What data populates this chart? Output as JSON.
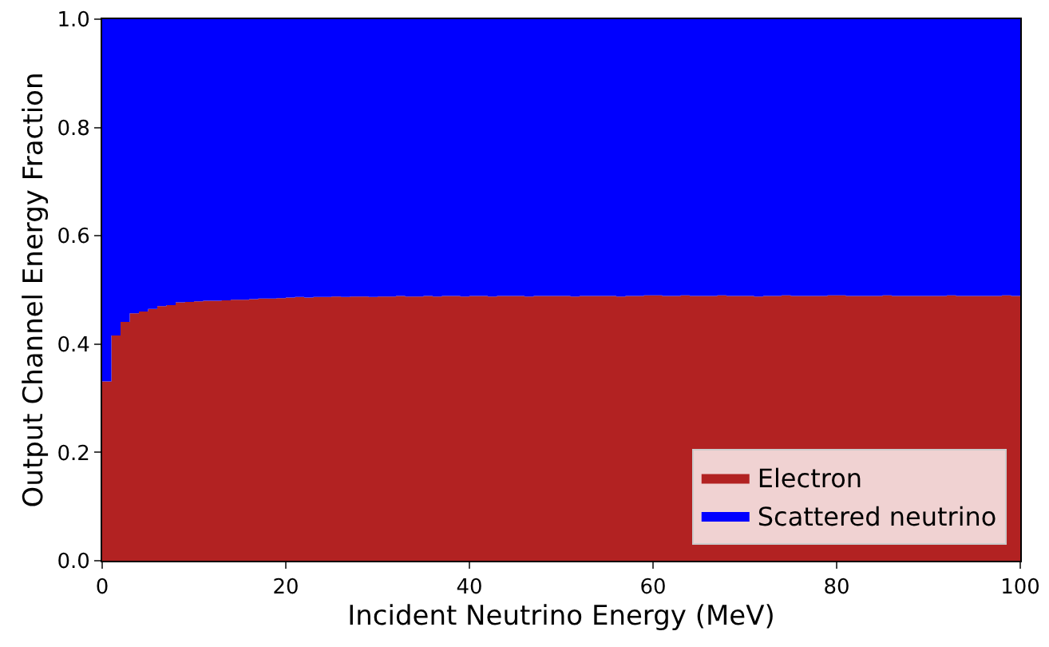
{
  "chart_data": {
    "type": "area",
    "stacked": true,
    "xlabel": "Incident Neutrino Energy (MeV)",
    "ylabel": "Output Channel Energy Fraction",
    "x": [
      0.5,
      1.5,
      2.5,
      3.5,
      4.5,
      5.5,
      6.5,
      7.5,
      8.5,
      9.5,
      10.5,
      11.5,
      12.5,
      13.5,
      14.5,
      15.5,
      16.5,
      17.5,
      18.5,
      19.5,
      20.5,
      21.5,
      22.5,
      23.5,
      24.5,
      25.5,
      26.5,
      27.5,
      28.5,
      29.5,
      30.5,
      31.5,
      32.5,
      33.5,
      34.5,
      35.5,
      36.5,
      37.5,
      38.5,
      39.5,
      40.5,
      41.5,
      42.5,
      43.5,
      44.5,
      45.5,
      46.5,
      47.5,
      48.5,
      49.5,
      50.5,
      51.5,
      52.5,
      53.5,
      54.5,
      55.5,
      56.5,
      57.5,
      58.5,
      59.5,
      60.5,
      61.5,
      62.5,
      63.5,
      64.5,
      65.5,
      66.5,
      67.5,
      68.5,
      69.5,
      70.5,
      71.5,
      72.5,
      73.5,
      74.5,
      75.5,
      76.5,
      77.5,
      78.5,
      79.5,
      80.5,
      81.5,
      82.5,
      83.5,
      84.5,
      85.5,
      86.5,
      87.5,
      88.5,
      89.5,
      90.5,
      91.5,
      92.5,
      93.5,
      94.5,
      95.5,
      96.5,
      97.5,
      98.5,
      99.5
    ],
    "series": [
      {
        "name": "Electron",
        "color": "#b22222",
        "values": [
          0.331,
          0.416,
          0.441,
          0.457,
          0.46,
          0.465,
          0.47,
          0.472,
          0.477,
          0.478,
          0.479,
          0.48,
          0.48,
          0.481,
          0.482,
          0.482,
          0.483,
          0.484,
          0.484,
          0.485,
          0.486,
          0.487,
          0.486,
          0.487,
          0.487,
          0.488,
          0.487,
          0.488,
          0.488,
          0.487,
          0.488,
          0.488,
          0.489,
          0.488,
          0.488,
          0.489,
          0.488,
          0.489,
          0.489,
          0.488,
          0.489,
          0.489,
          0.488,
          0.489,
          0.489,
          0.489,
          0.488,
          0.489,
          0.489,
          0.489,
          0.489,
          0.488,
          0.489,
          0.489,
          0.489,
          0.489,
          0.488,
          0.489,
          0.489,
          0.49,
          0.49,
          0.489,
          0.489,
          0.49,
          0.489,
          0.489,
          0.489,
          0.49,
          0.489,
          0.489,
          0.489,
          0.488,
          0.489,
          0.489,
          0.49,
          0.489,
          0.489,
          0.489,
          0.489,
          0.49,
          0.49,
          0.489,
          0.489,
          0.489,
          0.489,
          0.49,
          0.489,
          0.489,
          0.489,
          0.489,
          0.489,
          0.489,
          0.49,
          0.489,
          0.489,
          0.489,
          0.489,
          0.489,
          0.49,
          0.489
        ]
      },
      {
        "name": "Scattered neutrino",
        "color": "#0000ff",
        "values": [
          0.669,
          0.584,
          0.559,
          0.543,
          0.54,
          0.535,
          0.53,
          0.528,
          0.523,
          0.522,
          0.521,
          0.52,
          0.52,
          0.519,
          0.518,
          0.518,
          0.517,
          0.516,
          0.516,
          0.515,
          0.514,
          0.513,
          0.514,
          0.513,
          0.513,
          0.512,
          0.513,
          0.512,
          0.512,
          0.513,
          0.512,
          0.512,
          0.511,
          0.512,
          0.512,
          0.511,
          0.512,
          0.511,
          0.511,
          0.512,
          0.511,
          0.511,
          0.512,
          0.511,
          0.511,
          0.511,
          0.512,
          0.511,
          0.511,
          0.511,
          0.511,
          0.512,
          0.511,
          0.511,
          0.511,
          0.511,
          0.512,
          0.511,
          0.511,
          0.51,
          0.51,
          0.511,
          0.511,
          0.51,
          0.511,
          0.511,
          0.511,
          0.51,
          0.511,
          0.511,
          0.511,
          0.512,
          0.511,
          0.511,
          0.51,
          0.511,
          0.511,
          0.511,
          0.511,
          0.51,
          0.51,
          0.511,
          0.511,
          0.511,
          0.511,
          0.51,
          0.511,
          0.511,
          0.511,
          0.511,
          0.511,
          0.511,
          0.51,
          0.511,
          0.511,
          0.511,
          0.511,
          0.511,
          0.51,
          0.511
        ]
      }
    ],
    "xlim": [
      0,
      100
    ],
    "xticks": [
      0,
      20,
      40,
      60,
      80,
      100
    ],
    "ylim": [
      0,
      1
    ],
    "yticks": [
      {
        "value": 0,
        "label": "0.0"
      },
      {
        "value": 0.2,
        "label": "0.2"
      },
      {
        "value": 0.4,
        "label": "0.4"
      },
      {
        "value": 0.6,
        "label": "0.6"
      },
      {
        "value": 0.8,
        "label": "0.8"
      },
      {
        "value": 1,
        "label": "1.0"
      }
    ],
    "legend": "bottom right"
  }
}
